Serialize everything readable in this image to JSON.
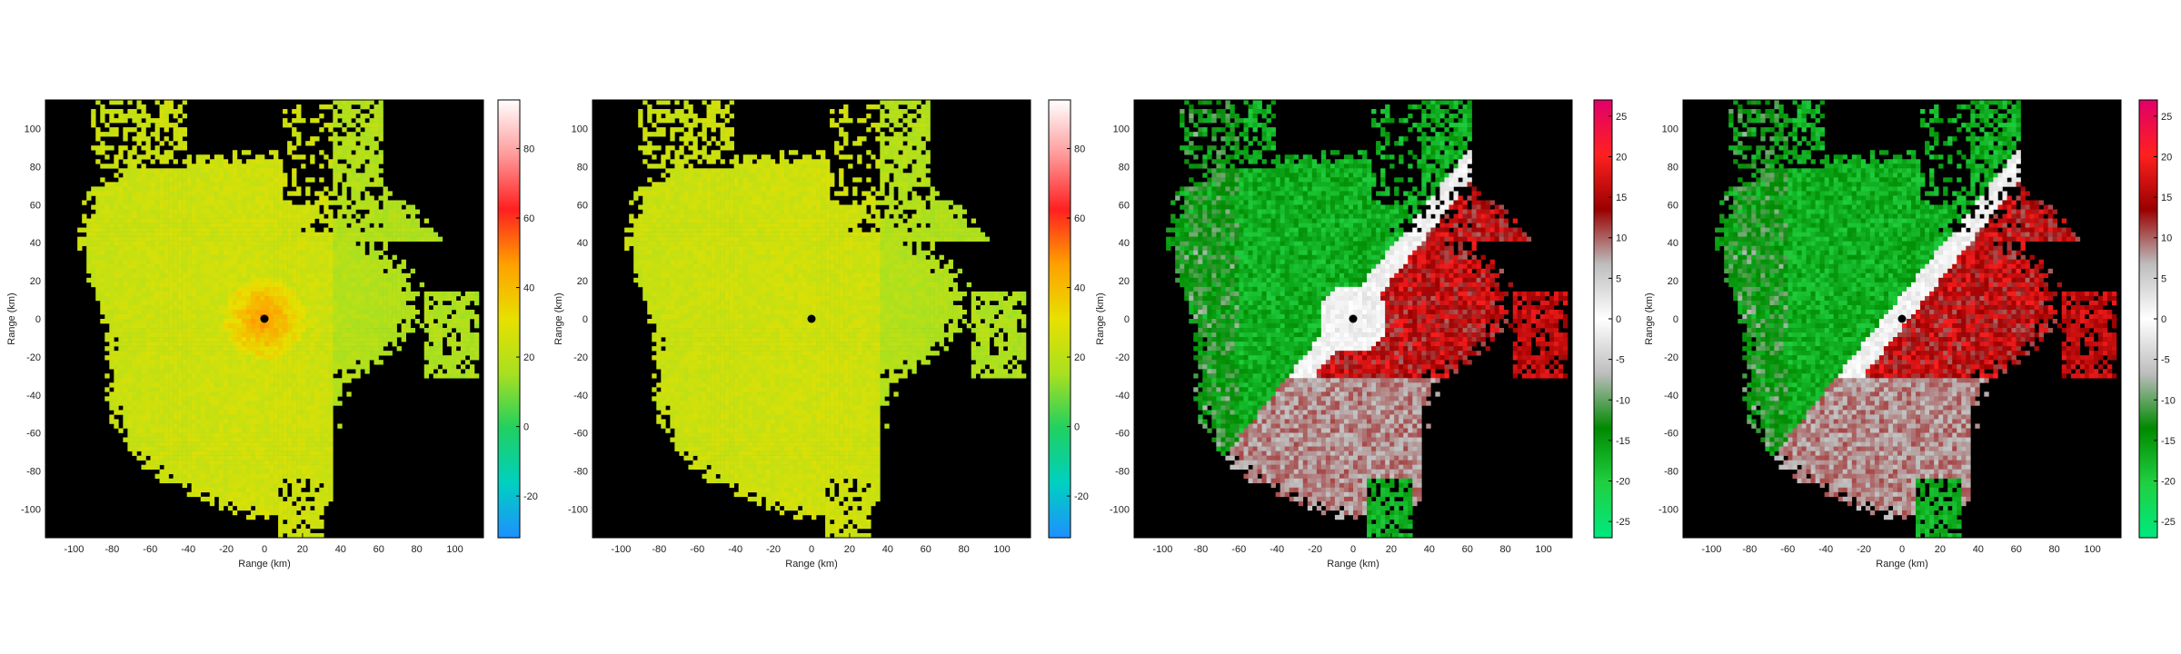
{
  "chart_data": [
    {
      "type": "heatmap",
      "xlabel": "Range (km)",
      "ylabel": "Range (km)",
      "xlim": [
        -115,
        115
      ],
      "ylim": [
        -115,
        115
      ],
      "xticks": [
        "-100",
        "-80",
        "-60",
        "-40",
        "-20",
        "0",
        "20",
        "40",
        "60",
        "80",
        "100"
      ],
      "yticks": [
        "100",
        "80",
        "60",
        "40",
        "20",
        "0",
        "-20",
        "-40",
        "-60",
        "-80",
        "-100"
      ],
      "colorbar": {
        "min": -32,
        "max": 94,
        "ticks": [
          "80",
          "60",
          "40",
          "20",
          "0",
          "-20"
        ],
        "tick_values": [
          80,
          60,
          40,
          20,
          0,
          -20
        ],
        "colormap": [
          "#1e90ff",
          "#00d0c0",
          "#20d060",
          "#a8e020",
          "#e8e000",
          "#ffa000",
          "#ff2020",
          "#ff9a9a",
          "#ffffff"
        ]
      },
      "field": "reflectivity",
      "center_hotspot": true
    },
    {
      "type": "heatmap",
      "xlabel": "Range (km)",
      "ylabel": "Range (km)",
      "xlim": [
        -115,
        115
      ],
      "ylim": [
        -115,
        115
      ],
      "xticks": [
        "-100",
        "-80",
        "-60",
        "-40",
        "-20",
        "0",
        "20",
        "40",
        "60",
        "80",
        "100"
      ],
      "yticks": [
        "100",
        "80",
        "60",
        "40",
        "20",
        "0",
        "-20",
        "-40",
        "-60",
        "-80",
        "-100"
      ],
      "colorbar": {
        "min": -32,
        "max": 94,
        "ticks": [
          "80",
          "60",
          "40",
          "20",
          "0",
          "-20"
        ],
        "tick_values": [
          80,
          60,
          40,
          20,
          0,
          -20
        ],
        "colormap": [
          "#1e90ff",
          "#00d0c0",
          "#20d060",
          "#a8e020",
          "#e8e000",
          "#ffa000",
          "#ff2020",
          "#ff9a9a",
          "#ffffff"
        ]
      },
      "field": "reflectivity",
      "center_hotspot": false
    },
    {
      "type": "heatmap",
      "xlabel": "Range (km)",
      "ylabel": "Range (km)",
      "xlim": [
        -115,
        115
      ],
      "ylim": [
        -115,
        115
      ],
      "xticks": [
        "-100",
        "-80",
        "-60",
        "-40",
        "-20",
        "0",
        "20",
        "40",
        "60",
        "80",
        "100"
      ],
      "yticks": [
        "100",
        "80",
        "60",
        "40",
        "20",
        "0",
        "-20",
        "-40",
        "-60",
        "-80",
        "-100"
      ],
      "colorbar": {
        "min": -27,
        "max": 27,
        "ticks": [
          "25",
          "20",
          "15",
          "10",
          "5",
          "0",
          "-5",
          "-10",
          "-15",
          "-20",
          "-25"
        ],
        "tick_values": [
          25,
          20,
          15,
          10,
          5,
          0,
          -5,
          -10,
          -15,
          -20,
          -25
        ],
        "colormap": [
          "#00e880",
          "#20d040",
          "#008a00",
          "#bdbdbd",
          "#ffffff",
          "#bdbdbd",
          "#9a0000",
          "#ff2020",
          "#e0006a"
        ]
      },
      "field": "velocity",
      "center_hotspot": true
    },
    {
      "type": "heatmap",
      "xlabel": "Range (km)",
      "ylabel": "Range (km)",
      "xlim": [
        -115,
        115
      ],
      "ylim": [
        -115,
        115
      ],
      "xticks": [
        "-100",
        "-80",
        "-60",
        "-40",
        "-20",
        "0",
        "20",
        "40",
        "60",
        "80",
        "100"
      ],
      "yticks": [
        "100",
        "80",
        "60",
        "40",
        "20",
        "0",
        "-20",
        "-40",
        "-60",
        "-80",
        "-100"
      ],
      "colorbar": {
        "min": -27,
        "max": 27,
        "ticks": [
          "25",
          "20",
          "15",
          "10",
          "5",
          "0",
          "-5",
          "-10",
          "-15",
          "-20",
          "-25"
        ],
        "tick_values": [
          25,
          20,
          15,
          10,
          5,
          0,
          -5,
          -10,
          -15,
          -20,
          -25
        ],
        "colormap": [
          "#00e880",
          "#20d040",
          "#008a00",
          "#bdbdbd",
          "#ffffff",
          "#bdbdbd",
          "#9a0000",
          "#ff2020",
          "#e0006a"
        ]
      },
      "field": "velocity",
      "center_hotspot": false
    }
  ]
}
